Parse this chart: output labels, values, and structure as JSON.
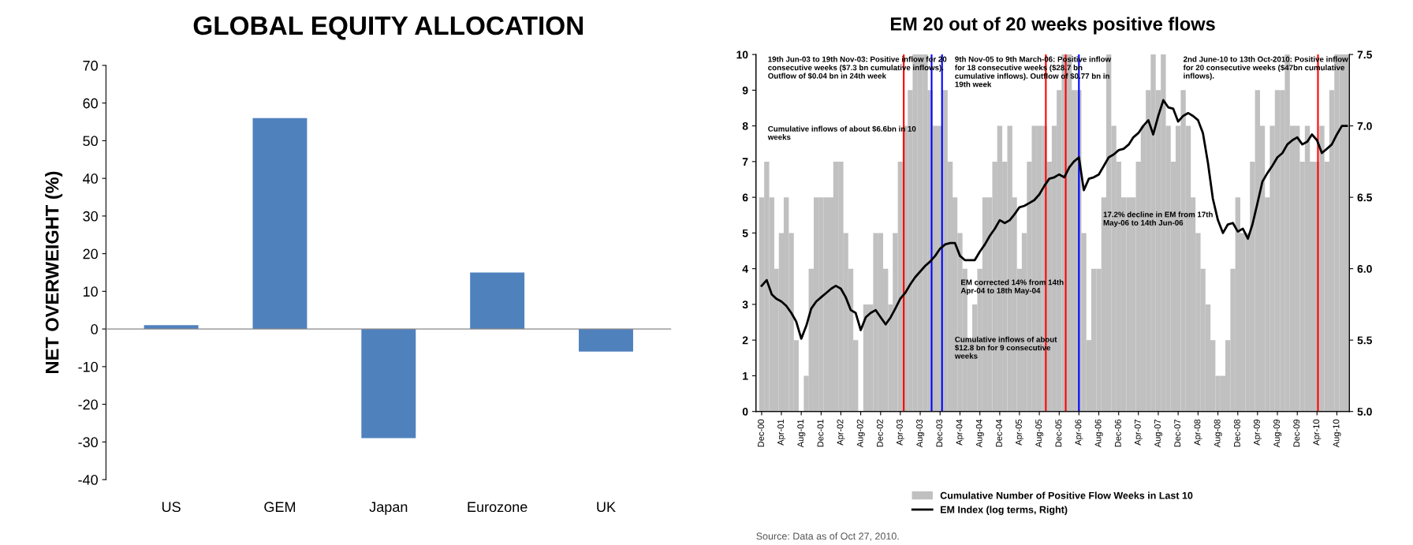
{
  "chart_data": [
    {
      "type": "bar",
      "title": "GLOBAL EQUITY ALLOCATION",
      "ylabel": "NET OVERWEIGHT (%)",
      "categories": [
        "US",
        "GEM",
        "Japan",
        "Eurozone",
        "UK"
      ],
      "values": [
        1,
        56,
        -29,
        15,
        -6
      ],
      "color": "#4f81bd",
      "ylim": [
        -40,
        70
      ],
      "yticks": [
        -40,
        -30,
        -20,
        -10,
        0,
        10,
        20,
        30,
        40,
        50,
        60,
        70
      ],
      "grid": false,
      "legend": false,
      "ref_lines": [
        {
          "axis": "y",
          "value": 0,
          "color": "#888888"
        }
      ]
    },
    {
      "type": "bar",
      "title": "EM 20 out of 20 weeks positive flows",
      "legend": "bottom",
      "grid": false,
      "x": [
        "2000-12",
        "2001-01",
        "2001-02",
        "2001-03",
        "2001-04",
        "2001-05",
        "2001-06",
        "2001-07",
        "2001-08",
        "2001-09",
        "2001-10",
        "2001-11",
        "2001-12",
        "2002-01",
        "2002-02",
        "2002-03",
        "2002-04",
        "2002-05",
        "2002-06",
        "2002-07",
        "2002-08",
        "2002-09",
        "2002-10",
        "2002-11",
        "2002-12",
        "2003-01",
        "2003-02",
        "2003-03",
        "2003-04",
        "2003-05",
        "2003-06",
        "2003-07",
        "2003-08",
        "2003-09",
        "2003-10",
        "2003-11",
        "2003-12",
        "2004-01",
        "2004-02",
        "2004-03",
        "2004-04",
        "2004-05",
        "2004-06",
        "2004-07",
        "2004-08",
        "2004-09",
        "2004-10",
        "2004-11",
        "2004-12",
        "2005-01",
        "2005-02",
        "2005-03",
        "2005-04",
        "2005-05",
        "2005-06",
        "2005-07",
        "2005-08",
        "2005-09",
        "2005-10",
        "2005-11",
        "2005-12",
        "2006-01",
        "2006-02",
        "2006-03",
        "2006-04",
        "2006-05",
        "2006-06",
        "2006-07",
        "2006-08",
        "2006-09",
        "2006-10",
        "2006-11",
        "2006-12",
        "2007-01",
        "2007-02",
        "2007-03",
        "2007-04",
        "2007-05",
        "2007-06",
        "2007-07",
        "2007-08",
        "2007-09",
        "2007-10",
        "2007-11",
        "2007-12",
        "2008-01",
        "2008-02",
        "2008-03",
        "2008-04",
        "2008-05",
        "2008-06",
        "2008-07",
        "2008-08",
        "2008-09",
        "2008-10",
        "2008-11",
        "2008-12",
        "2009-01",
        "2009-02",
        "2009-03",
        "2009-04",
        "2009-05",
        "2009-06",
        "2009-07",
        "2009-08",
        "2009-09",
        "2009-10",
        "2009-11",
        "2009-12",
        "2010-01",
        "2010-02",
        "2010-03",
        "2010-04",
        "2010-05",
        "2010-06",
        "2010-07",
        "2010-08",
        "2010-09",
        "2010-10"
      ],
      "series": [
        {
          "name": "Cumulative Number of Positive Flow Weeks in Last 10",
          "type": "bar",
          "color": "#c0c0c0",
          "values": [
            6,
            7,
            6,
            4,
            5,
            6,
            5,
            2,
            0,
            1,
            4,
            6,
            6,
            6,
            6,
            7,
            7,
            5,
            4,
            2,
            0,
            3,
            3,
            5,
            5,
            4,
            3,
            5,
            7,
            8,
            9,
            10,
            10,
            10,
            9,
            8,
            8,
            9,
            7,
            6,
            5,
            4,
            2,
            3,
            4,
            6,
            6,
            7,
            8,
            7,
            8,
            6,
            4,
            5,
            7,
            8,
            8,
            8,
            7,
            8,
            9,
            10,
            10,
            9,
            9,
            5,
            2,
            4,
            4,
            6,
            10,
            8,
            7,
            6,
            6,
            6,
            7,
            8,
            9,
            10,
            9,
            10,
            8,
            7,
            8,
            9,
            8,
            6,
            5,
            4,
            3,
            2,
            1,
            1,
            2,
            4,
            6,
            5,
            5,
            7,
            9,
            8,
            6,
            8,
            9,
            9,
            10,
            8,
            8,
            7,
            8,
            7,
            7,
            8,
            7,
            9,
            10,
            10,
            10
          ]
        },
        {
          "name": "EM Index (log terms, Right)",
          "type": "line",
          "axis": "y2",
          "color": "#000000",
          "values": [
            5.88,
            5.92,
            5.82,
            5.79,
            5.77,
            5.74,
            5.69,
            5.63,
            5.51,
            5.6,
            5.72,
            5.77,
            5.8,
            5.83,
            5.86,
            5.88,
            5.86,
            5.8,
            5.71,
            5.69,
            5.57,
            5.66,
            5.69,
            5.71,
            5.66,
            5.61,
            5.66,
            5.72,
            5.79,
            5.83,
            5.89,
            5.94,
            5.98,
            6.02,
            6.05,
            6.09,
            6.14,
            6.17,
            6.18,
            6.18,
            6.09,
            6.06,
            6.06,
            6.06,
            6.12,
            6.17,
            6.23,
            6.28,
            6.34,
            6.32,
            6.34,
            6.38,
            6.43,
            6.44,
            6.46,
            6.48,
            6.52,
            6.58,
            6.63,
            6.64,
            6.66,
            6.64,
            6.71,
            6.75,
            6.78,
            6.55,
            6.63,
            6.64,
            6.66,
            6.72,
            6.78,
            6.8,
            6.83,
            6.84,
            6.87,
            6.92,
            6.95,
            7.0,
            7.04,
            6.94,
            7.07,
            7.18,
            7.13,
            7.12,
            7.03,
            7.07,
            7.09,
            7.07,
            7.04,
            6.95,
            6.74,
            6.49,
            6.34,
            6.25,
            6.31,
            6.32,
            6.26,
            6.28,
            6.21,
            6.31,
            6.46,
            6.61,
            6.67,
            6.72,
            6.78,
            6.81,
            6.87,
            6.9,
            6.92,
            6.87,
            6.89,
            6.94,
            6.9,
            6.81,
            6.84,
            6.87,
            6.94,
            7.0,
            7.0
          ]
        }
      ],
      "xlim": [
        "2000-11-10",
        "2010-10-31"
      ],
      "xticks": [
        {
          "value": "2000-12",
          "label": "Dec-00"
        },
        {
          "value": "2001-04",
          "label": "Apr-01"
        },
        {
          "value": "2001-08",
          "label": "Aug-01"
        },
        {
          "value": "2001-12",
          "label": "Dec-01"
        },
        {
          "value": "2002-04",
          "label": "Apr-02"
        },
        {
          "value": "2002-08",
          "label": "Aug-02"
        },
        {
          "value": "2002-12",
          "label": "Dec-02"
        },
        {
          "value": "2003-04",
          "label": "Apr-03"
        },
        {
          "value": "2003-08",
          "label": "Aug-03"
        },
        {
          "value": "2003-12",
          "label": "Dec-03"
        },
        {
          "value": "2004-04",
          "label": "Apr-04"
        },
        {
          "value": "2004-08",
          "label": "Aug-04"
        },
        {
          "value": "2004-12",
          "label": "Dec-04"
        },
        {
          "value": "2005-04",
          "label": "Apr-05"
        },
        {
          "value": "2005-08",
          "label": "Aug-05"
        },
        {
          "value": "2005-12",
          "label": "Dec-05"
        },
        {
          "value": "2006-04",
          "label": "Apr-06"
        },
        {
          "value": "2006-08",
          "label": "Aug-06"
        },
        {
          "value": "2006-12",
          "label": "Dec-06"
        },
        {
          "value": "2007-04",
          "label": "Apr-07"
        },
        {
          "value": "2007-08",
          "label": "Aug-07"
        },
        {
          "value": "2007-12",
          "label": "Dec-07"
        },
        {
          "value": "2008-04",
          "label": "Apr-08"
        },
        {
          "value": "2008-08",
          "label": "Aug-08"
        },
        {
          "value": "2008-12",
          "label": "Dec-08"
        },
        {
          "value": "2009-04",
          "label": "Apr-09"
        },
        {
          "value": "2009-08",
          "label": "Aug-09"
        },
        {
          "value": "2009-12",
          "label": "Dec-09"
        },
        {
          "value": "2010-04",
          "label": "Apr-10"
        },
        {
          "value": "2010-08",
          "label": "Aug-10"
        }
      ],
      "ylim": [
        0,
        10
      ],
      "yticks": [
        0,
        1,
        2,
        3,
        4,
        5,
        6,
        7,
        8,
        9,
        10
      ],
      "y2lim": [
        5.0,
        7.5
      ],
      "y2ticks": [
        {
          "value": 5.0,
          "label": "5.0"
        },
        {
          "value": 5.5,
          "label": "5.5"
        },
        {
          "value": 6.0,
          "label": "6.0"
        },
        {
          "value": 6.5,
          "label": "6.5"
        },
        {
          "value": 7.0,
          "label": "7.0"
        },
        {
          "value": 7.5,
          "label": "7.5"
        }
      ],
      "ref_lines": [
        {
          "axis": "x",
          "value": "2003-05-06",
          "color": "#ff0000"
        },
        {
          "axis": "x",
          "value": "2003-10-24",
          "color": "#0000ff"
        },
        {
          "axis": "x",
          "value": "2003-12-27",
          "color": "#0000ff"
        },
        {
          "axis": "x",
          "value": "2005-09-24",
          "color": "#ff0000"
        },
        {
          "axis": "x",
          "value": "2006-01-24",
          "color": "#ff0000"
        },
        {
          "axis": "x",
          "value": "2006-04-15",
          "color": "#0000ff"
        },
        {
          "axis": "x",
          "value": "2010-04-21",
          "color": "#ff0000"
        }
      ],
      "annotations": [
        "19th Jun-03 to 19th Nov-03: Positive inflow for 20 consecutive weeks ($7.3 bn cumulative inflows). Outflow of $0.04 bn in 24th week",
        "Cumulative inflows of about $6.6bn in 10 weeks",
        "9th Nov-05 to 9th March-06: Positive inflow for 18 consecutive weeks ($28.7 bn cumulative inflows). Outflow of $0.77 bn in 19th week",
        "2nd June-10 to 13th Oct-2010: Positive inflow for 20 consecutive weeks ($47bn cumulative inflows).",
        "EM corrected 14% from 14th Apr-04 to 18th May-04",
        "17.2% decline in EM from 17th May-06 to 14th Jun-06",
        "Cumulative inflows of about $12.8 bn for 9 consecutive weeks",
        "Source: Data as of Oct 27, 2010."
      ]
    }
  ]
}
